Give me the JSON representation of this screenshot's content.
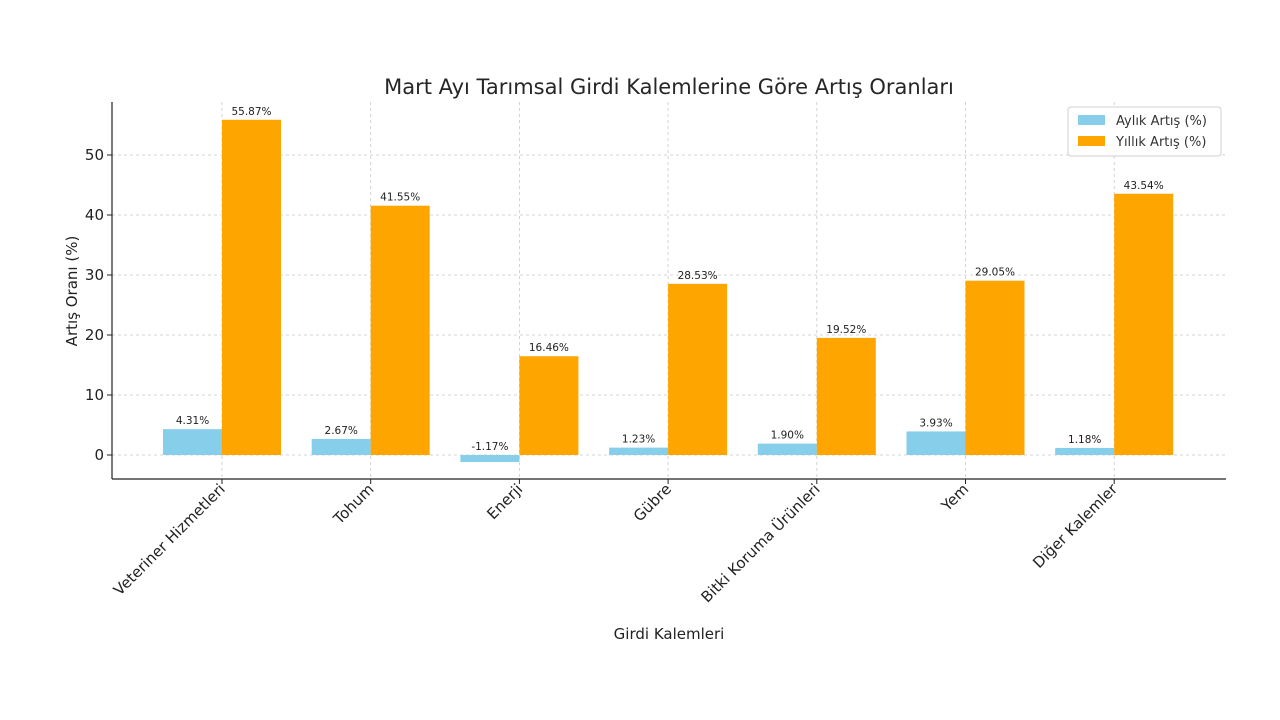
{
  "chart_data": {
    "type": "bar",
    "title": "Mart Ayı Tarımsal Girdi Kalemlerine Göre Artış Oranları",
    "xlabel": "Girdi Kalemleri",
    "ylabel": "Artış Oranı (%)",
    "ylim": [
      -4,
      58.5
    ],
    "yticks": [
      0,
      10,
      20,
      30,
      40,
      50
    ],
    "grid": true,
    "legend_position": "top-right",
    "categories": [
      "Veteriner Hizmetleri",
      "Tohum",
      "Enerji",
      "Gübre",
      "Bitki Koruma Ürünleri",
      "Yem",
      "Diğer Kalemler"
    ],
    "series": [
      {
        "name": "Aylık Artış (%)",
        "color": "#87CEEB",
        "values": [
          4.31,
          2.67,
          -1.17,
          1.23,
          1.9,
          3.93,
          1.18
        ],
        "labels": [
          "4.31%",
          "2.67%",
          "-1.17%",
          "1.23%",
          "1.90%",
          "3.93%",
          "1.18%"
        ]
      },
      {
        "name": "Yıllık Artış (%)",
        "color": "#FFA500",
        "values": [
          55.87,
          41.55,
          16.46,
          28.53,
          19.52,
          29.05,
          43.54
        ],
        "labels": [
          "55.87%",
          "41.55%",
          "16.46%",
          "28.53%",
          "19.52%",
          "29.05%",
          "43.54%"
        ]
      }
    ]
  }
}
